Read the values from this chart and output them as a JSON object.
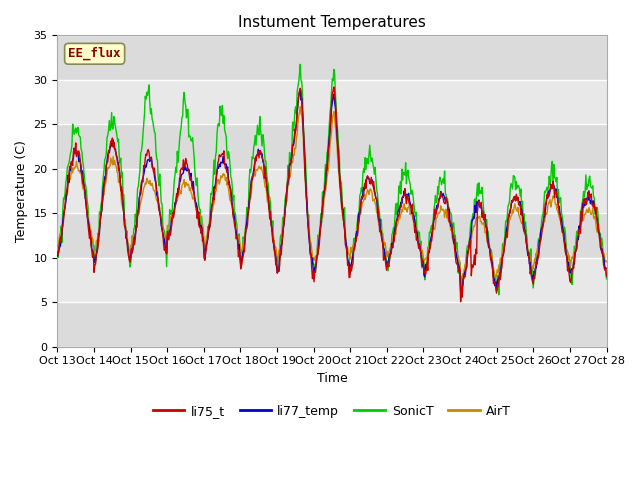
{
  "title": "Instument Temperatures",
  "xlabel": "Time",
  "ylabel": "Temperature (C)",
  "ylim": [
    0,
    35
  ],
  "yticks": [
    0,
    5,
    10,
    15,
    20,
    25,
    30,
    35
  ],
  "xtick_labels": [
    "Oct 13",
    "Oct 14",
    "Oct 15",
    "Oct 16",
    "Oct 17",
    "Oct 18",
    "Oct 19",
    "Oct 20",
    "Oct 21",
    "Oct 22",
    "Oct 23",
    "Oct 24",
    "Oct 25",
    "Oct 26",
    "Oct 27",
    "Oct 28"
  ],
  "colors": {
    "li75_t": "#cc0000",
    "li77_temp": "#0000cc",
    "SonicT": "#00cc00",
    "AirT": "#cc8800"
  },
  "annotation_text": "EE_flux",
  "plot_bg": "#e8e8e8",
  "grid_color": "white",
  "title_fontsize": 11,
  "axis_label_fontsize": 9,
  "tick_fontsize": 8,
  "legend_fontsize": 9,
  "figsize": [
    6.4,
    4.8
  ],
  "dpi": 100
}
